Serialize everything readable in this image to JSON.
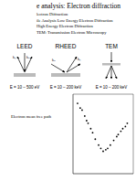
{
  "header": {
    "title": "e analysis: Electron diffraction"
  },
  "lines": [
    "lectron Diffraction",
    "ile Analysis Low Energy Electron Diffraction",
    "High Energy Electron Diffraction",
    "TEM: Transmission Electron Microscopy"
  ],
  "techniques": [
    {
      "label": "LEED",
      "energy": "E = 10 – 500 eV",
      "k_labels": [
        "k₀",
        "kₛ"
      ]
    },
    {
      "label": "RHEED",
      "energy": "E = 10 – 200 keV",
      "k_labels": [
        "k₀",
        "kₛ"
      ]
    },
    {
      "label": "TEM",
      "energy": "E = 10 – 200 keV"
    }
  ],
  "chart_data": {
    "type": "scatter",
    "title": "Electron mean free path",
    "log": true,
    "tick_labels": false,
    "marker": "dot",
    "xlim": [
      1,
      10000
    ],
    "ylim": [
      0.1,
      100
    ],
    "x": [
      2,
      3,
      4,
      6,
      8,
      10,
      15,
      20,
      30,
      50,
      70,
      100,
      150,
      200,
      300,
      500,
      800,
      1000,
      1500,
      2000,
      3000,
      4000
    ],
    "values": [
      45,
      30,
      25,
      15,
      10,
      8,
      5,
      3.5,
      2,
      1.2,
      0.9,
      0.7,
      0.8,
      0.9,
      1.2,
      1.8,
      2.5,
      3,
      4,
      5,
      6,
      8
    ]
  }
}
